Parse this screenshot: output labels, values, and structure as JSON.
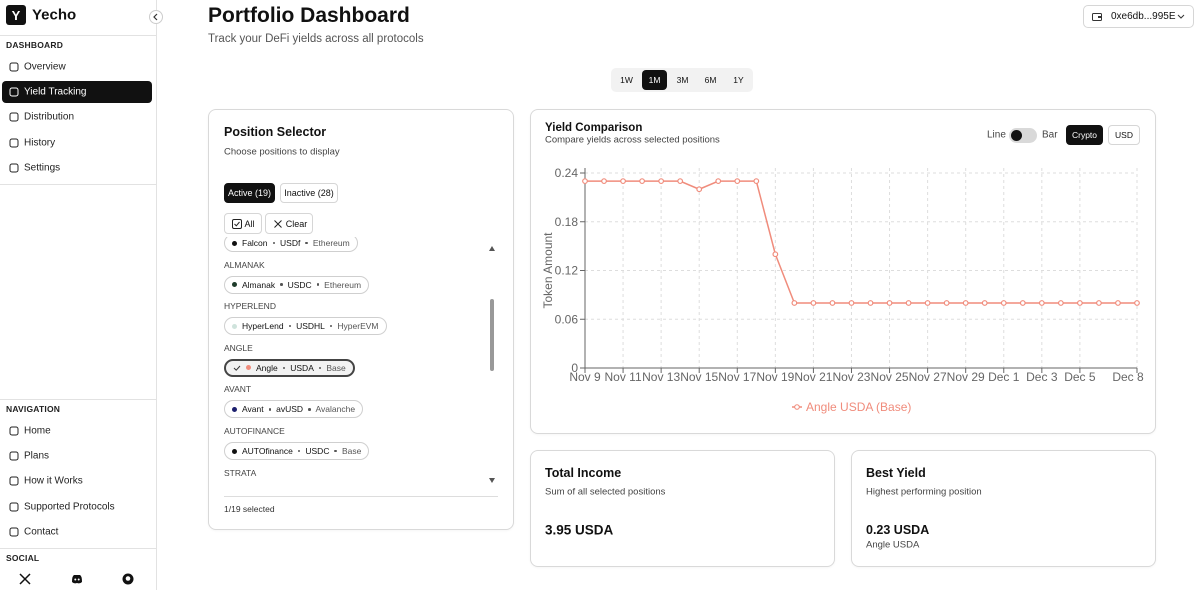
{
  "sidebar": {
    "logo": "Y",
    "brand": "Yecho",
    "sections": [
      {
        "title": "DASHBOARD",
        "items": [
          "Overview",
          "Yield Tracking",
          "Distribution",
          "History",
          "Settings"
        ]
      },
      {
        "title": "NAVIGATION",
        "items": [
          "Home",
          "Plans",
          "How it Works",
          "Supported Protocols",
          "Contact"
        ]
      },
      {
        "title": "SOCIAL"
      }
    ]
  },
  "header": {
    "title": "Portfolio Dashboard",
    "subtitle": "Track your DeFi yields across all protocols",
    "wallet": "0xe6db...995E"
  },
  "time_ranges": [
    "1W",
    "1M",
    "3M",
    "6M",
    "1Y"
  ],
  "position_selector": {
    "title": "Position Selector",
    "subtitle": "Choose positions to display",
    "tabs": [
      "Active (19)",
      "Inactive (28)"
    ],
    "buttons": [
      "All",
      "Clear"
    ],
    "groups": [
      {
        "position": {
          "protocol": "Falcon",
          "token": "USDf",
          "chain": "Ethereum",
          "color": "#111111"
        }
      },
      {
        "label": "ALMANAK",
        "position": {
          "protocol": "Almanak",
          "token": "USDC",
          "chain": "Ethereum",
          "color": "#1f3b2b"
        }
      },
      {
        "label": "HYPERLEND",
        "position": {
          "protocol": "HyperLend",
          "token": "USDHL",
          "chain": "HyperEVM",
          "color": "#cfe3dc"
        }
      },
      {
        "label": "ANGLE",
        "position": {
          "protocol": "Angle",
          "token": "USDA",
          "chain": "Base",
          "color": "#f08c7c",
          "selected": true
        }
      },
      {
        "label": "AVANT",
        "position": {
          "protocol": "Avant",
          "token": "avUSD",
          "chain": "Avalanche",
          "color": "#1c1f6e"
        }
      },
      {
        "label": "AUTOFINANCE",
        "position": {
          "protocol": "AUTOfinance",
          "token": "USDC",
          "chain": "Base",
          "color": "#111111"
        }
      },
      {
        "label": "STRATA"
      }
    ],
    "footer": "1/19 selected"
  },
  "chart_card": {
    "title": "Yield Comparison",
    "subtitle": "Compare yields across selected positions",
    "toggle": [
      "Line",
      "Bar"
    ],
    "units": [
      "Crypto",
      "USD"
    ]
  },
  "chart_data": {
    "type": "line",
    "y_label": "Token Amount",
    "categories": [
      "Nov 9",
      null,
      "Nov 11",
      null,
      "Nov 13",
      null,
      "Nov 15",
      null,
      "Nov 17",
      null,
      "Nov 19",
      null,
      "Nov 21",
      null,
      "Nov 23",
      null,
      "Nov 25",
      null,
      "Nov 27",
      null,
      "Nov 29",
      null,
      "Dec 1",
      null,
      "Dec 3",
      null,
      "Dec 5",
      null,
      null,
      "Dec 8"
    ],
    "series": [
      {
        "name": "Angle USDA (Base)",
        "color": "#f08c7c",
        "values": [
          0.23,
          0.23,
          0.23,
          0.23,
          0.23,
          0.23,
          0.22,
          0.23,
          0.23,
          0.23,
          0.14,
          0.08,
          0.08,
          0.08,
          0.08,
          0.08,
          0.08,
          0.08,
          0.08,
          0.08,
          0.08,
          0.08,
          0.08,
          0.08,
          0.08,
          0.08,
          0.08,
          0.08,
          0.08,
          0.08
        ]
      }
    ],
    "ylim": [
      0,
      0.24
    ],
    "yticks": [
      0,
      0.06,
      0.12,
      0.18,
      0.24
    ],
    "grid": true
  },
  "stats": [
    {
      "title": "Total Income",
      "subtitle": "Sum of all selected positions",
      "value": "3.95 USDA"
    },
    {
      "title": "Best Yield",
      "subtitle": "Highest performing position",
      "value": "0.23 USDA",
      "detail": "Angle USDA"
    }
  ]
}
